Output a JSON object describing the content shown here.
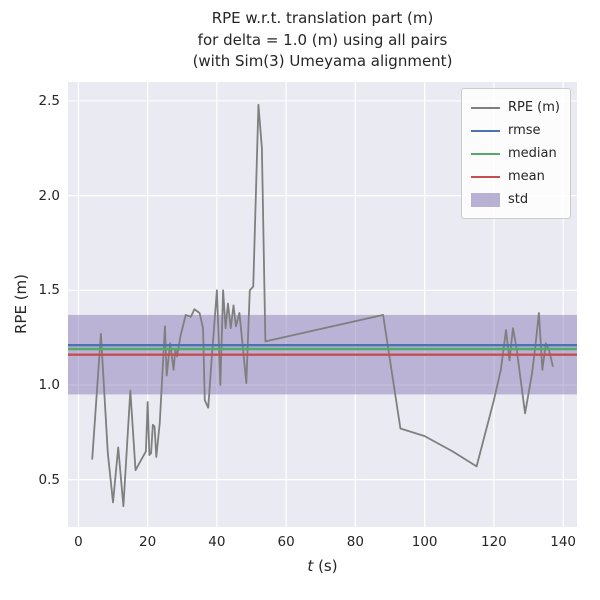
{
  "figure": {
    "title_lines": [
      "RPE w.r.t. translation part (m)",
      "for delta = 1.0 (m) using all pairs",
      "(with Sim(3) Umeyama alignment)"
    ],
    "xlabel_var": "t",
    "xlabel_unit": " (s)",
    "ylabel": "RPE (m)"
  },
  "legend": {
    "entries": [
      {
        "label": "RPE (m)",
        "type": "line",
        "color": "#7f7f7f",
        "width": 2
      },
      {
        "label": "rmse",
        "type": "line",
        "color": "#4c72b0",
        "width": 2.5
      },
      {
        "label": "median",
        "type": "line",
        "color": "#55a868",
        "width": 2.5
      },
      {
        "label": "mean",
        "type": "line",
        "color": "#c44e52",
        "width": 2.5
      },
      {
        "label": "std",
        "type": "patch",
        "color": "#8172b2"
      }
    ]
  },
  "chart_data": {
    "type": "line",
    "title": "RPE w.r.t. translation part (m)\nfor delta = 1.0 (m) using all pairs\n(with Sim(3) Umeyama alignment)",
    "xlabel": "t (s)",
    "ylabel": "RPE (m)",
    "xlim": [
      -3,
      144
    ],
    "ylim": [
      0.25,
      2.6
    ],
    "xticks": [
      0,
      20,
      40,
      60,
      80,
      100,
      120,
      140
    ],
    "xtick_labels": [
      "0",
      "20",
      "40",
      "60",
      "80",
      "100",
      "120",
      "140"
    ],
    "yticks": [
      0.5,
      1.0,
      1.5,
      2.0,
      2.5
    ],
    "ytick_labels": [
      "0.5",
      "1.0",
      "1.5",
      "2.0",
      "2.5"
    ],
    "grid": true,
    "legend_position": "upper right",
    "stats": {
      "rmse": 1.21,
      "median": 1.19,
      "mean": 1.16,
      "std": 0.21
    },
    "std_band": [
      0.95,
      1.37
    ],
    "colors": {
      "line": "#7f7f7f",
      "rmse": "#4c72b0",
      "median": "#55a868",
      "mean": "#c44e52",
      "std_fill": "#8172b2",
      "axes_bg": "#eaeaf2",
      "grid": "#ffffff",
      "text": "#262626"
    },
    "series": [
      {
        "name": "RPE (m)",
        "color": "#7f7f7f",
        "points": [
          [
            4,
            0.61
          ],
          [
            6.5,
            1.27
          ],
          [
            8.5,
            0.64
          ],
          [
            10,
            0.38
          ],
          [
            11.5,
            0.67
          ],
          [
            13,
            0.36
          ],
          [
            15,
            0.97
          ],
          [
            16.5,
            0.55
          ],
          [
            18,
            0.6
          ],
          [
            19.5,
            0.65
          ],
          [
            20,
            0.91
          ],
          [
            20.5,
            0.63
          ],
          [
            21,
            0.64
          ],
          [
            21.5,
            0.79
          ],
          [
            22,
            0.78
          ],
          [
            22.5,
            0.62
          ],
          [
            23.5,
            0.8
          ],
          [
            25,
            1.31
          ],
          [
            25.5,
            1.05
          ],
          [
            26.5,
            1.22
          ],
          [
            27.5,
            1.08
          ],
          [
            28,
            1.19
          ],
          [
            28.5,
            1.15
          ],
          [
            29.5,
            1.26
          ],
          [
            31,
            1.37
          ],
          [
            32.5,
            1.36
          ],
          [
            33.5,
            1.4
          ],
          [
            35,
            1.38
          ],
          [
            36,
            1.3
          ],
          [
            36.5,
            0.92
          ],
          [
            37.5,
            0.88
          ],
          [
            38.5,
            1.14
          ],
          [
            40,
            1.5
          ],
          [
            41,
            1.0
          ],
          [
            41.8,
            1.5
          ],
          [
            42.5,
            1.3
          ],
          [
            43.2,
            1.43
          ],
          [
            44,
            1.3
          ],
          [
            44.8,
            1.42
          ],
          [
            45.5,
            1.31
          ],
          [
            46.5,
            1.38
          ],
          [
            47.5,
            1.2
          ],
          [
            48.5,
            1.01
          ],
          [
            49.5,
            1.5
          ],
          [
            50.5,
            1.52
          ],
          [
            52,
            2.48
          ],
          [
            53,
            2.25
          ],
          [
            54,
            1.23
          ],
          [
            88,
            1.37
          ],
          [
            93,
            0.77
          ],
          [
            100,
            0.73
          ],
          [
            108,
            0.65
          ],
          [
            115,
            0.57
          ],
          [
            120,
            0.92
          ],
          [
            122,
            1.08
          ],
          [
            123.5,
            1.29
          ],
          [
            124.5,
            1.13
          ],
          [
            125.5,
            1.3
          ],
          [
            126.5,
            1.2
          ],
          [
            127.5,
            1.06
          ],
          [
            129,
            0.85
          ],
          [
            131,
            1.06
          ],
          [
            132,
            1.21
          ],
          [
            133,
            1.38
          ],
          [
            134,
            1.08
          ],
          [
            135,
            1.22
          ],
          [
            136,
            1.18
          ],
          [
            137,
            1.1
          ]
        ]
      }
    ]
  }
}
